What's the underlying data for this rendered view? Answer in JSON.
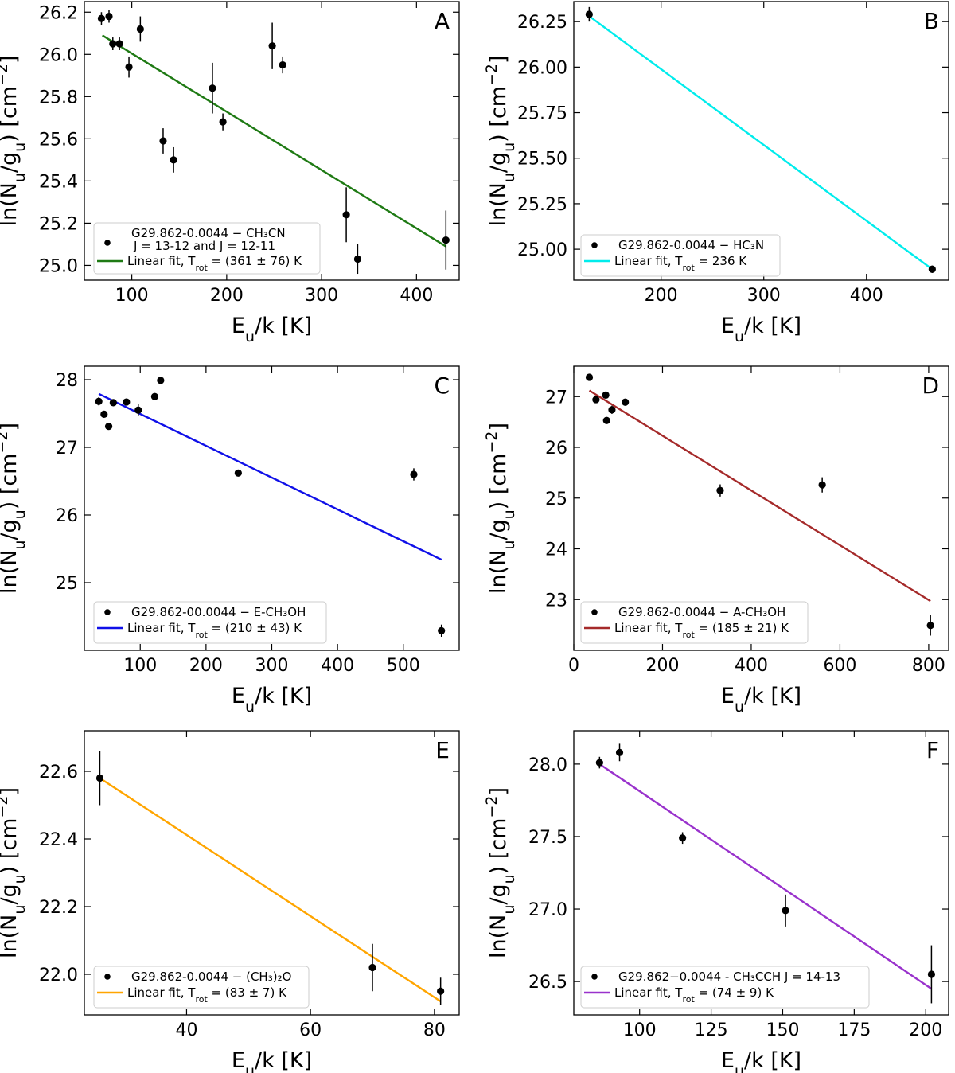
{
  "figure": {
    "ylabel": "ln(N_u/g_u) [cm^-2]",
    "xlabel": "E_u/k [K]"
  },
  "chart_data": [
    {
      "panel": "A",
      "type": "scatter",
      "xlim": [
        50,
        445
      ],
      "ylim": [
        24.93,
        26.25
      ],
      "xticks": [
        100,
        200,
        300,
        400
      ],
      "xtick_labels": [
        "100",
        "200",
        "300",
        "400"
      ],
      "yticks": [
        25.0,
        25.2,
        25.4,
        25.6,
        25.8,
        26.0,
        26.2
      ],
      "ytick_labels": [
        "25.0",
        "25.2",
        "25.4",
        "25.6",
        "25.8",
        "26.0",
        "26.2"
      ],
      "line_color": "#1f7a14",
      "points": [
        {
          "x": 68,
          "y": 26.17,
          "err": 0.03
        },
        {
          "x": 76,
          "y": 26.18,
          "err": 0.03
        },
        {
          "x": 80,
          "y": 26.05,
          "err": 0.03
        },
        {
          "x": 87,
          "y": 26.05,
          "err": 0.03
        },
        {
          "x": 97,
          "y": 25.94,
          "err": 0.05
        },
        {
          "x": 109,
          "y": 26.12,
          "err": 0.06
        },
        {
          "x": 133,
          "y": 25.59,
          "err": 0.06
        },
        {
          "x": 144,
          "y": 25.5,
          "err": 0.06
        },
        {
          "x": 185,
          "y": 25.84,
          "err": 0.12
        },
        {
          "x": 196,
          "y": 25.68,
          "err": 0.04
        },
        {
          "x": 248,
          "y": 26.04,
          "err": 0.11
        },
        {
          "x": 259,
          "y": 25.95,
          "err": 0.04
        },
        {
          "x": 326,
          "y": 25.24,
          "err": 0.13
        },
        {
          "x": 338,
          "y": 25.03,
          "err": 0.07
        },
        {
          "x": 431,
          "y": 25.12,
          "err": 0.14
        }
      ],
      "fit": {
        "x": [
          69,
          431
        ],
        "y": [
          26.09,
          25.09
        ]
      },
      "legend": {
        "points_label_line1": "G29.862-0.0044 − CH₃CN",
        "points_label_line2": "J = 13-12 and J = 12-11",
        "fit_label": "Linear fit, T_rot = (361 ± 76) K"
      }
    },
    {
      "panel": "B",
      "type": "scatter",
      "xlim": [
        115,
        480
      ],
      "ylim": [
        24.83,
        26.36
      ],
      "xticks": [
        200,
        300,
        400
      ],
      "xtick_labels": [
        "200",
        "300",
        "400"
      ],
      "yticks": [
        25.0,
        25.25,
        25.5,
        25.75,
        26.0,
        26.25
      ],
      "ytick_labels": [
        "25.00",
        "25.25",
        "25.50",
        "25.75",
        "26.00",
        "26.25"
      ],
      "line_color": "#00ecec",
      "points": [
        {
          "x": 130,
          "y": 26.29,
          "err": 0.04
        },
        {
          "x": 464,
          "y": 24.89,
          "err": 0.02
        }
      ],
      "fit": {
        "x": [
          130,
          464
        ],
        "y": [
          26.28,
          24.89
        ]
      },
      "legend": {
        "points_label_line1": "G29.862-0.0044 − HC₃N",
        "points_label_line2": "",
        "fit_label": "Linear fit, T_rot = 236 K"
      }
    },
    {
      "panel": "C",
      "type": "scatter",
      "xlim": [
        15,
        585
      ],
      "ylim": [
        24.0,
        28.2
      ],
      "xticks": [
        100,
        200,
        300,
        400,
        500
      ],
      "xtick_labels": [
        "100",
        "200",
        "300",
        "400",
        "500"
      ],
      "yticks": [
        25,
        26,
        27,
        28
      ],
      "ytick_labels": [
        "25",
        "26",
        "27",
        "28"
      ],
      "line_color": "#1010e8",
      "points": [
        {
          "x": 37,
          "y": 27.68,
          "err": 0.06
        },
        {
          "x": 45,
          "y": 27.49,
          "err": 0.05
        },
        {
          "x": 52,
          "y": 27.31,
          "err": 0.05
        },
        {
          "x": 59,
          "y": 27.66,
          "err": 0.05
        },
        {
          "x": 79,
          "y": 27.67,
          "err": 0.05
        },
        {
          "x": 97,
          "y": 27.55,
          "err": 0.09
        },
        {
          "x": 122,
          "y": 27.75,
          "err": 0.05
        },
        {
          "x": 131,
          "y": 27.99,
          "err": 0.05
        },
        {
          "x": 249,
          "y": 26.62,
          "err": 0.05
        },
        {
          "x": 516,
          "y": 26.6,
          "err": 0.09
        },
        {
          "x": 558,
          "y": 24.29,
          "err": 0.09
        }
      ],
      "fit": {
        "x": [
          37,
          558
        ],
        "y": [
          27.79,
          25.34
        ]
      },
      "legend": {
        "points_label_line1": "G29.862-00.0044 − E-CH₃OH",
        "points_label_line2": "",
        "fit_label": "Linear fit, T_rot = (210 ± 43) K"
      }
    },
    {
      "panel": "D",
      "type": "scatter",
      "xlim": [
        0,
        845
      ],
      "ylim": [
        22.0,
        27.6
      ],
      "xticks": [
        0,
        200,
        400,
        600,
        800
      ],
      "xtick_labels": [
        "0",
        "200",
        "400",
        "600",
        "800"
      ],
      "yticks": [
        23,
        24,
        25,
        26,
        27
      ],
      "ytick_labels": [
        "23",
        "24",
        "25",
        "26",
        "27"
      ],
      "line_color": "#a52a2a",
      "points": [
        {
          "x": 35,
          "y": 27.38,
          "err": 0.05
        },
        {
          "x": 50,
          "y": 26.94,
          "err": 0.05
        },
        {
          "x": 72,
          "y": 27.03,
          "err": 0.05
        },
        {
          "x": 74,
          "y": 26.53,
          "err": 0.06
        },
        {
          "x": 86,
          "y": 26.74,
          "err": 0.08
        },
        {
          "x": 116,
          "y": 26.89,
          "err": 0.06
        },
        {
          "x": 330,
          "y": 25.15,
          "err": 0.12
        },
        {
          "x": 560,
          "y": 25.26,
          "err": 0.15
        },
        {
          "x": 804,
          "y": 22.49,
          "err": 0.2
        }
      ],
      "fit": {
        "x": [
          35,
          804
        ],
        "y": [
          27.12,
          22.97
        ]
      },
      "legend": {
        "points_label_line1": "G29.862-0.0044 −  A-CH₃OH",
        "points_label_line2": "",
        "fit_label": "Linear fit, T_rot = (185 ± 21) K"
      }
    },
    {
      "panel": "E",
      "type": "scatter",
      "xlim": [
        23.5,
        84
      ],
      "ylim": [
        21.88,
        22.72
      ],
      "xticks": [
        40,
        60,
        80
      ],
      "xtick_labels": [
        "40",
        "60",
        "80"
      ],
      "yticks": [
        22.0,
        22.2,
        22.4,
        22.6
      ],
      "ytick_labels": [
        "22.0",
        "22.2",
        "22.4",
        "22.6"
      ],
      "line_color": "#ffa500",
      "points": [
        {
          "x": 26,
          "y": 22.58,
          "err": 0.08
        },
        {
          "x": 70,
          "y": 22.02,
          "err": 0.07
        },
        {
          "x": 81,
          "y": 21.95,
          "err": 0.04
        }
      ],
      "fit": {
        "x": [
          26,
          81
        ],
        "y": [
          22.58,
          21.92
        ]
      },
      "legend": {
        "points_label_line1": "G29.862-0.0044 − (CH₃)₂O",
        "points_label_line2": "",
        "fit_label": "Linear fit, T_rot = (83 ± 7) K"
      }
    },
    {
      "panel": "F",
      "type": "scatter",
      "xlim": [
        77,
        208
      ],
      "ylim": [
        26.27,
        28.23
      ],
      "xticks": [
        100,
        125,
        150,
        175,
        200
      ],
      "xtick_labels": [
        "100",
        "125",
        "150",
        "175",
        "200"
      ],
      "yticks": [
        26.5,
        27.0,
        27.5,
        28.0
      ],
      "ytick_labels": [
        "26.5",
        "27.0",
        "27.5",
        "28.0"
      ],
      "line_color": "#9932cc",
      "points": [
        {
          "x": 86,
          "y": 28.01,
          "err": 0.04
        },
        {
          "x": 93,
          "y": 28.08,
          "err": 0.06
        },
        {
          "x": 115,
          "y": 27.49,
          "err": 0.04
        },
        {
          "x": 151,
          "y": 26.99,
          "err": 0.11
        },
        {
          "x": 202,
          "y": 26.55,
          "err": 0.2
        }
      ],
      "fit": {
        "x": [
          86,
          202
        ],
        "y": [
          28.0,
          26.45
        ]
      },
      "legend": {
        "points_label_line1": "G29.862−0.0044 - CH₃CCH J = 14-13",
        "points_label_line2": "",
        "fit_label": "Linear fit, T_rot = (74 ± 9) K"
      }
    }
  ]
}
